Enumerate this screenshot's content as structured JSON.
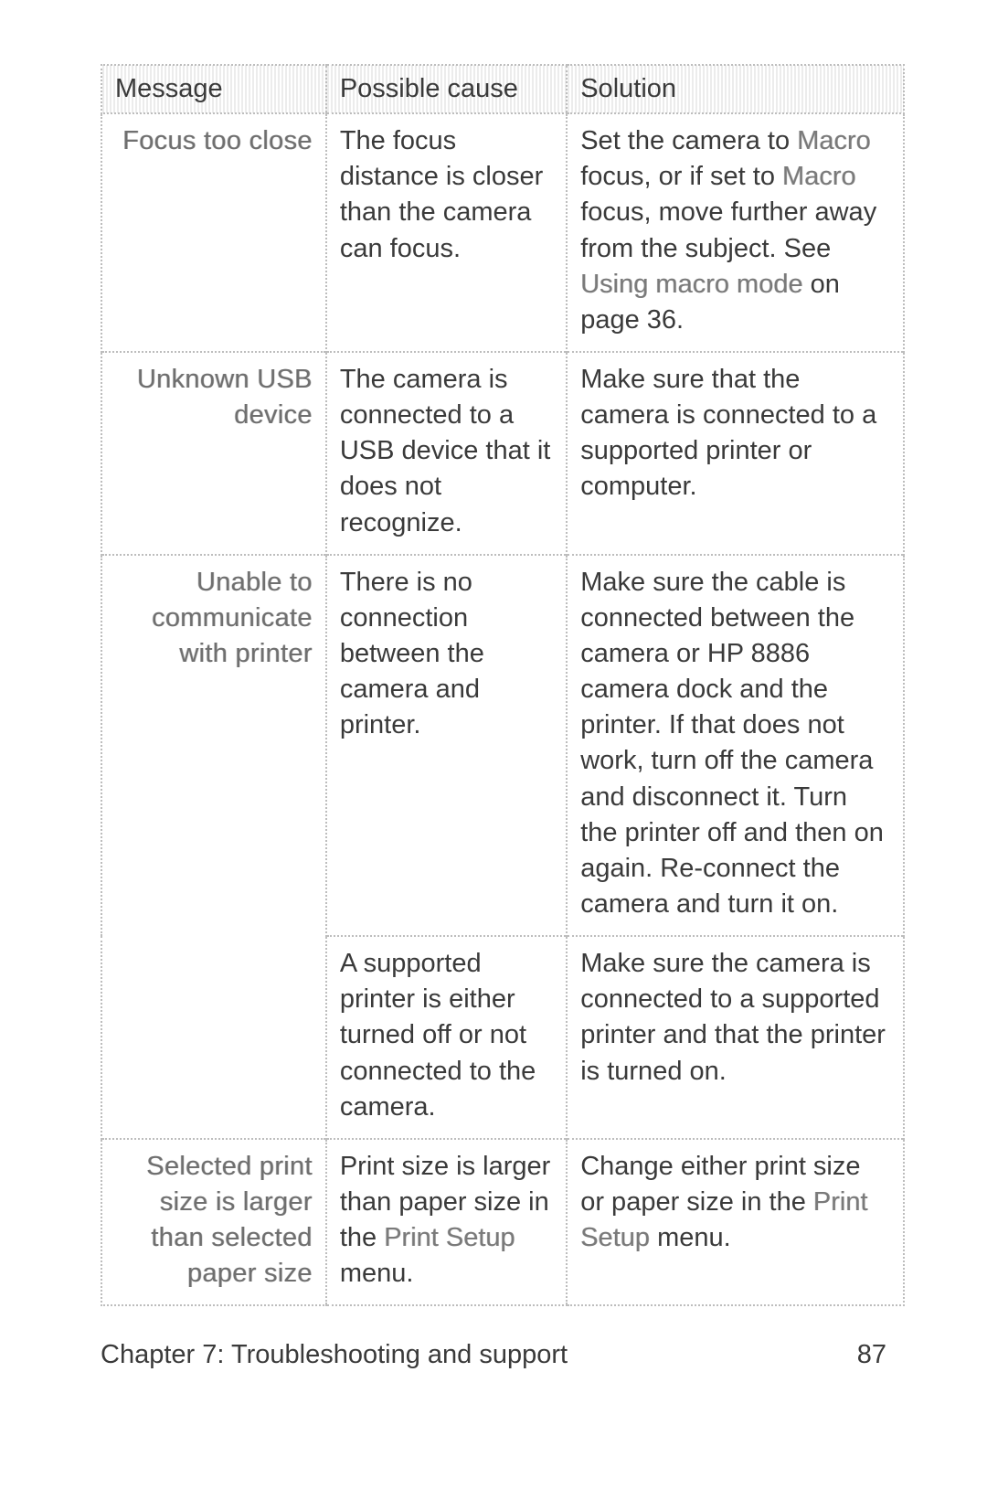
{
  "table": {
    "headers": {
      "message": "Message",
      "cause": "Possible cause",
      "solution": "Solution"
    },
    "rows": [
      {
        "message": "Focus too close",
        "cause": "The focus distance is closer than the camera can focus.",
        "solution_pre1": "Set the camera to ",
        "solution_term1": "Macro",
        "solution_mid1": " focus, or if set to ",
        "solution_term2": "Macro",
        "solution_mid2": " focus, move further away from the subject. See ",
        "solution_term3": "Using macro mode",
        "solution_post": " on page 36."
      },
      {
        "message": "Unknown USB device",
        "cause": "The camera is connected to a USB device that it does not recognize.",
        "solution": "Make sure that the camera is connected to a supported printer or computer."
      },
      {
        "message": "Unable to communicate with printer",
        "cause": "There is no connection between the camera and printer.",
        "solution": "Make sure the cable is connected between the camera or HP 8886 camera dock and the printer. If that does not work, turn off the camera and disconnect it. Turn the printer off and then on again. Re-connect the camera and turn it on."
      },
      {
        "cause": "A supported printer is either turned off or not connected to the camera.",
        "solution": "Make sure the camera is connected to a supported printer and that the printer is turned on."
      },
      {
        "message": "Selected print size is larger than selected paper size",
        "cause_pre": "Print size is larger than paper size in the ",
        "cause_term": "Print Setup",
        "cause_post": " menu.",
        "solution_pre": "Change either print size or paper size in the ",
        "solution_term": "Print Setup",
        "solution_post": " menu."
      }
    ]
  },
  "footer": {
    "chapter": "Chapter 7: Troubleshooting and support",
    "page": "87"
  }
}
